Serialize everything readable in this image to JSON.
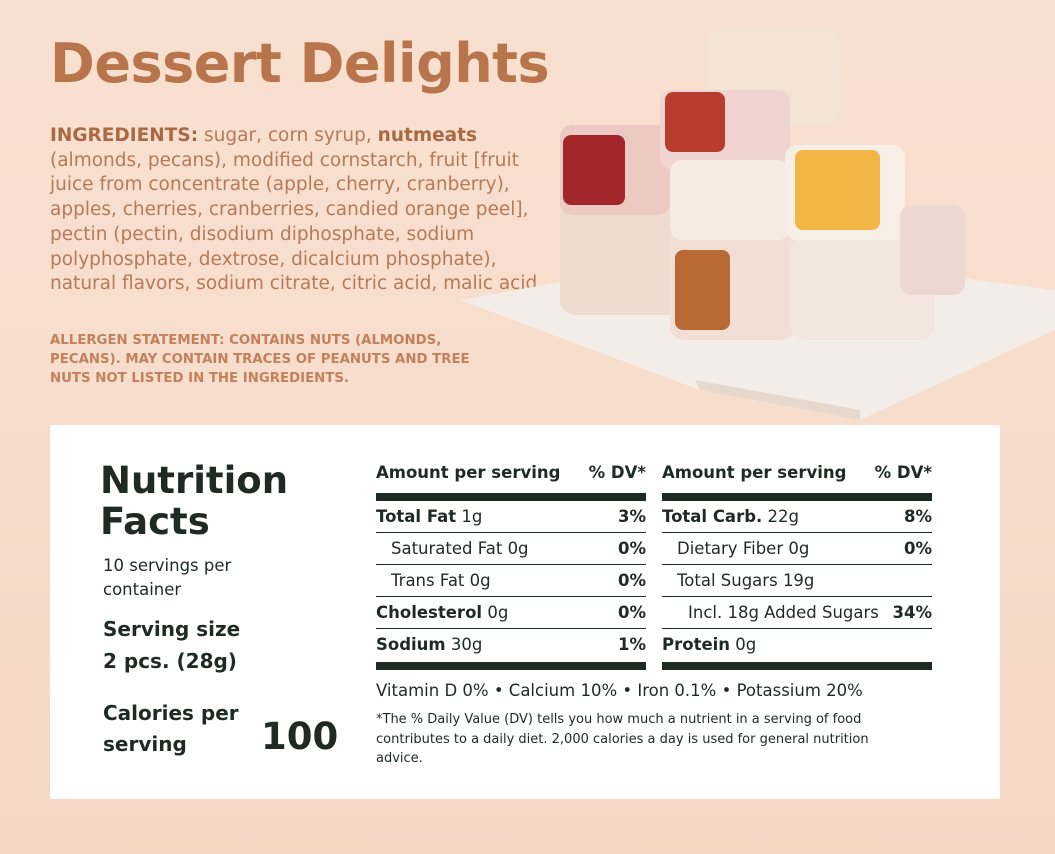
{
  "header": {
    "title": "Dessert Delights"
  },
  "ingredients": {
    "label": "INGREDIENTS:",
    "text_before": "sugar, corn syrup,",
    "highlight": "nutmeats",
    "text_after": "(almonds, pecans), modified cornstarch, fruit [fruit juice from concentrate (apple, cherry, cranberry), apples, cherries, cranberries, candied orange peel], pectin (pectin, disodium diphosphate, sodium polyphosphate, dextrose, dicalcium phosphate), natural flavors, sodium citrate, citric acid, malic acid"
  },
  "allergen": "ALLERGEN STATEMENT: CONTAINS NUTS (ALMONDS, PECANS). MAY CONTAIN TRACES OF PEANUTS AND TREE NUTS NOT LISTED IN THE INGREDIENTS.",
  "nutrition": {
    "title": "Nutrition Facts",
    "servings": "10 servings per container",
    "serving_size_label": "Serving size",
    "serving_size": "2 pcs. (28g)",
    "calories_label": "Calories per serving",
    "calories": "100",
    "left": {
      "header": [
        "Amount per serving",
        "% DV*"
      ],
      "rows": [
        [
          "Total Fat",
          "1g",
          "3%"
        ],
        [
          "Saturated Fat",
          "0g",
          "0%"
        ],
        [
          "Trans Fat",
          "0g",
          "0%"
        ],
        [
          "Cholesterol",
          "0g",
          "0%"
        ],
        [
          "Sodium",
          "30g",
          "1%"
        ]
      ]
    },
    "right": {
      "header": [
        "Amount per serving",
        "% DV*"
      ],
      "rows": [
        [
          "Total Carb.",
          "22g",
          "8%"
        ],
        [
          "Dietary Fiber",
          "0g",
          "0%"
        ],
        [
          "Total Sugars",
          "19g"
        ],
        [
          "Incl. 18g Added Sugars",
          "34%"
        ],
        [
          "Protein",
          "0g"
        ]
      ]
    },
    "vitamins": "Vitamin D 0% • Calcium 10% • Iron 0.1% • Potassium 20%",
    "footnote": "*The % Daily Value (DV) tells you how much a nutrient in a serving of food contributes to a daily diet. 2,000 calories a day is used for general nutrition advice."
  }
}
